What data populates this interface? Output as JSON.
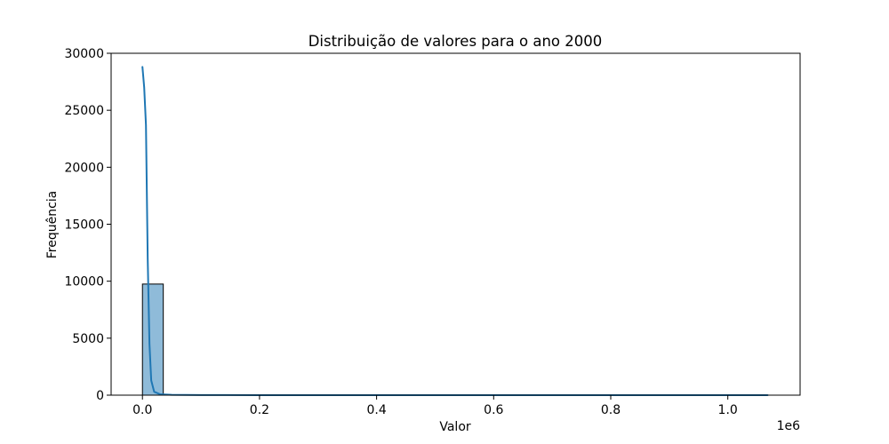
{
  "chart_data": {
    "type": "histogram",
    "title": "Distribuição de valores para o ano 2000",
    "xlabel": "Valor",
    "ylabel": "Frequência",
    "x_offset_label": "1e6",
    "xlim": [
      -53500,
      1123500
    ],
    "ylim": [
      0,
      30000
    ],
    "x_ticks": [
      {
        "value": 0,
        "label": "0.0"
      },
      {
        "value": 200000,
        "label": "0.2"
      },
      {
        "value": 400000,
        "label": "0.4"
      },
      {
        "value": 600000,
        "label": "0.6"
      },
      {
        "value": 800000,
        "label": "0.8"
      },
      {
        "value": 1000000,
        "label": "1.0"
      }
    ],
    "y_ticks": [
      {
        "value": 0,
        "label": "0"
      },
      {
        "value": 5000,
        "label": "5000"
      },
      {
        "value": 10000,
        "label": "10000"
      },
      {
        "value": 15000,
        "label": "15000"
      },
      {
        "value": 20000,
        "label": "20000"
      },
      {
        "value": 25000,
        "label": "25000"
      },
      {
        "value": 30000,
        "label": "30000"
      }
    ],
    "bins": [
      {
        "x0": 0,
        "x1": 35600,
        "count": 9750
      },
      {
        "x0": 35600,
        "x1": 71200,
        "count": 30
      },
      {
        "x0": 71200,
        "x1": 106800,
        "count": 8
      },
      {
        "x0": 106800,
        "x1": 142400,
        "count": 4
      },
      {
        "x0": 142400,
        "x1": 178000,
        "count": 3
      },
      {
        "x0": 178000,
        "x1": 213600,
        "count": 2
      },
      {
        "x0": 213600,
        "x1": 249200,
        "count": 2
      },
      {
        "x0": 249200,
        "x1": 284800,
        "count": 1
      },
      {
        "x0": 284800,
        "x1": 320400,
        "count": 1
      },
      {
        "x0": 320400,
        "x1": 356000,
        "count": 1
      },
      {
        "x0": 356000,
        "x1": 391600,
        "count": 1
      },
      {
        "x0": 391600,
        "x1": 427200,
        "count": 1
      },
      {
        "x0": 427200,
        "x1": 462800,
        "count": 0
      },
      {
        "x0": 462800,
        "x1": 498400,
        "count": 1
      },
      {
        "x0": 498400,
        "x1": 534000,
        "count": 0
      },
      {
        "x0": 534000,
        "x1": 569600,
        "count": 0
      },
      {
        "x0": 569600,
        "x1": 605200,
        "count": 1
      },
      {
        "x0": 605200,
        "x1": 640800,
        "count": 0
      },
      {
        "x0": 640800,
        "x1": 676400,
        "count": 0
      },
      {
        "x0": 676400,
        "x1": 712000,
        "count": 0
      },
      {
        "x0": 712000,
        "x1": 747600,
        "count": 0
      },
      {
        "x0": 747600,
        "x1": 783200,
        "count": 0
      },
      {
        "x0": 783200,
        "x1": 818800,
        "count": 1
      },
      {
        "x0": 818800,
        "x1": 854400,
        "count": 0
      },
      {
        "x0": 854400,
        "x1": 890000,
        "count": 0
      },
      {
        "x0": 890000,
        "x1": 925600,
        "count": 0
      },
      {
        "x0": 925600,
        "x1": 961200,
        "count": 0
      },
      {
        "x0": 961200,
        "x1": 996800,
        "count": 0
      },
      {
        "x0": 996800,
        "x1": 1032400,
        "count": 0
      },
      {
        "x0": 1032400,
        "x1": 1068000,
        "count": 1
      }
    ],
    "kde": {
      "x": [
        0,
        3000,
        6000,
        9000,
        12000,
        15000,
        20000,
        30000,
        50000,
        100000,
        200000,
        400000,
        600000,
        800000,
        1068000
      ],
      "y": [
        28800,
        27000,
        23700,
        12000,
        4500,
        1300,
        300,
        80,
        30,
        10,
        5,
        2,
        1,
        1,
        0
      ]
    },
    "colors": {
      "bar_fill": "#1f77b4",
      "bar_fill_opacity": 0.5,
      "bar_edge": "#000000",
      "kde_line": "#1f77b4"
    },
    "grid": false,
    "legend": "none"
  }
}
